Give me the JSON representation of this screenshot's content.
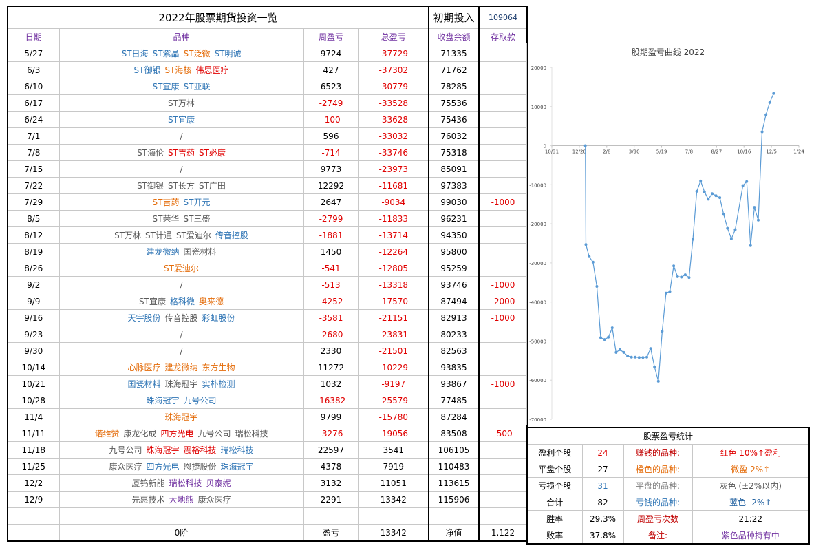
{
  "header": {
    "title": "2022年股票期货投资一览",
    "initial_label": "初期投入",
    "initial_value": 109064
  },
  "table": {
    "header_color": "#7030a0",
    "negative_color": "#e00000",
    "columns": [
      "日期",
      "品种",
      "周盈亏",
      "总盈亏",
      "收盘余额",
      "存取款"
    ],
    "rows": [
      {
        "date": "5/27",
        "stocks": [
          {
            "name": "ST日海",
            "color": "#2f75b5"
          },
          {
            "name": "ST紫晶",
            "color": "#2f75b5"
          },
          {
            "name": "ST泛微",
            "color": "#e46c0a"
          },
          {
            "name": "ST明诚",
            "color": "#2f75b5"
          }
        ],
        "weekly": 9724,
        "total": -37729,
        "balance": 71335,
        "deposit": null
      },
      {
        "date": "6/3",
        "stocks": [
          {
            "name": "ST御银",
            "color": "#2f75b5"
          },
          {
            "name": "ST海核",
            "color": "#e46c0a"
          },
          {
            "name": "伟思医疗",
            "color": "#e00000"
          }
        ],
        "weekly": 427,
        "total": -37302,
        "balance": 71762,
        "deposit": null
      },
      {
        "date": "6/10",
        "stocks": [
          {
            "name": "ST宜康",
            "color": "#2f75b5"
          },
          {
            "name": "ST亚联",
            "color": "#2f75b5"
          }
        ],
        "weekly": 6523,
        "total": -30779,
        "balance": 78285,
        "deposit": null
      },
      {
        "date": "6/17",
        "stocks": [
          {
            "name": "ST万林",
            "color": "#595959"
          }
        ],
        "weekly": -2749,
        "total": -33528,
        "balance": 75536,
        "deposit": null
      },
      {
        "date": "6/24",
        "stocks": [
          {
            "name": "ST宜康",
            "color": "#2f75b5"
          }
        ],
        "weekly": -100,
        "total": -33628,
        "balance": 75436,
        "deposit": null
      },
      {
        "date": "7/1",
        "stocks": [
          {
            "name": "/",
            "color": "#595959"
          }
        ],
        "weekly": 596,
        "total": -33032,
        "balance": 76032,
        "deposit": null
      },
      {
        "date": "7/8",
        "stocks": [
          {
            "name": "ST海伦",
            "color": "#595959"
          },
          {
            "name": "ST吉药",
            "color": "#e00000"
          },
          {
            "name": "ST必康",
            "color": "#e00000"
          }
        ],
        "weekly": -714,
        "total": -33746,
        "balance": 75318,
        "deposit": null
      },
      {
        "date": "7/15",
        "stocks": [
          {
            "name": "/",
            "color": "#595959"
          }
        ],
        "weekly": 9773,
        "total": -23973,
        "balance": 85091,
        "deposit": null
      },
      {
        "date": "7/22",
        "stocks": [
          {
            "name": "ST御银",
            "color": "#595959"
          },
          {
            "name": "ST长方",
            "color": "#595959"
          },
          {
            "name": "ST广田",
            "color": "#595959"
          }
        ],
        "weekly": 12292,
        "total": -11681,
        "balance": 97383,
        "deposit": null
      },
      {
        "date": "7/29",
        "stocks": [
          {
            "name": "ST吉药",
            "color": "#e46c0a"
          },
          {
            "name": "ST开元",
            "color": "#2f75b5"
          }
        ],
        "weekly": 2647,
        "total": -9034,
        "balance": 99030,
        "deposit": -1000
      },
      {
        "date": "8/5",
        "stocks": [
          {
            "name": "ST荣华",
            "color": "#595959"
          },
          {
            "name": "ST三盛",
            "color": "#595959"
          }
        ],
        "weekly": -2799,
        "total": -11833,
        "balance": 96231,
        "deposit": null
      },
      {
        "date": "8/12",
        "stocks": [
          {
            "name": "ST万林",
            "color": "#595959"
          },
          {
            "name": "ST计通",
            "color": "#595959"
          },
          {
            "name": "ST爱迪尔",
            "color": "#595959"
          },
          {
            "name": "传音控股",
            "color": "#2f75b5"
          }
        ],
        "weekly": -1881,
        "total": -13714,
        "balance": 94350,
        "deposit": null
      },
      {
        "date": "8/19",
        "stocks": [
          {
            "name": "建龙微纳",
            "color": "#2f75b5"
          },
          {
            "name": "国瓷材料",
            "color": "#595959"
          }
        ],
        "weekly": 1450,
        "total": -12264,
        "balance": 95800,
        "deposit": null
      },
      {
        "date": "8/26",
        "stocks": [
          {
            "name": "ST爱迪尔",
            "color": "#e46c0a"
          }
        ],
        "weekly": -541,
        "total": -12805,
        "balance": 95259,
        "deposit": null
      },
      {
        "date": "9/2",
        "stocks": [
          {
            "name": "/",
            "color": "#595959"
          }
        ],
        "weekly": -513,
        "total": -13318,
        "balance": 93746,
        "deposit": -1000
      },
      {
        "date": "9/9",
        "stocks": [
          {
            "name": "ST宜康",
            "color": "#595959"
          },
          {
            "name": "格科微",
            "color": "#2f75b5"
          },
          {
            "name": "奥来德",
            "color": "#e46c0a"
          }
        ],
        "weekly": -4252,
        "total": -17570,
        "balance": 87494,
        "deposit": -2000
      },
      {
        "date": "9/16",
        "stocks": [
          {
            "name": "天宇股份",
            "color": "#2f75b5"
          },
          {
            "name": "传音控股",
            "color": "#595959"
          },
          {
            "name": "彩虹股份",
            "color": "#2f75b5"
          }
        ],
        "weekly": -3581,
        "total": -21151,
        "balance": 82913,
        "deposit": -1000
      },
      {
        "date": "9/23",
        "stocks": [
          {
            "name": "/",
            "color": "#595959"
          }
        ],
        "weekly": -2680,
        "total": -23831,
        "balance": 80233,
        "deposit": null
      },
      {
        "date": "9/30",
        "stocks": [
          {
            "name": "/",
            "color": "#595959"
          }
        ],
        "weekly": 2330,
        "total": -21501,
        "balance": 82563,
        "deposit": null
      },
      {
        "date": "10/14",
        "stocks": [
          {
            "name": "心脉医疗",
            "color": "#e46c0a"
          },
          {
            "name": "建龙微纳",
            "color": "#e46c0a"
          },
          {
            "name": "东方生物",
            "color": "#e46c0a"
          }
        ],
        "weekly": 11272,
        "total": -10229,
        "balance": 93835,
        "deposit": null
      },
      {
        "date": "10/21",
        "stocks": [
          {
            "name": "国瓷材料",
            "color": "#2f75b5"
          },
          {
            "name": "珠海冠宇",
            "color": "#595959"
          },
          {
            "name": "实朴检测",
            "color": "#2f75b5"
          }
        ],
        "weekly": 1032,
        "total": -9197,
        "balance": 93867,
        "deposit": -1000
      },
      {
        "date": "10/28",
        "stocks": [
          {
            "name": "珠海冠宇",
            "color": "#2f75b5"
          },
          {
            "name": "九号公司",
            "color": "#2f75b5"
          }
        ],
        "weekly": -16382,
        "total": -25579,
        "balance": 77485,
        "deposit": null
      },
      {
        "date": "11/4",
        "stocks": [
          {
            "name": "珠海冠宇",
            "color": "#e46c0a"
          }
        ],
        "weekly": 9799,
        "total": -15780,
        "balance": 87284,
        "deposit": null
      },
      {
        "date": "11/11",
        "stocks": [
          {
            "name": "诺维赞",
            "color": "#e46c0a"
          },
          {
            "name": "康龙化成",
            "color": "#595959"
          },
          {
            "name": "四方光电",
            "color": "#e00000"
          },
          {
            "name": "九号公司",
            "color": "#595959"
          },
          {
            "name": "瑞松科技",
            "color": "#595959"
          }
        ],
        "weekly": -3276,
        "total": -19056,
        "balance": 83508,
        "deposit": -500
      },
      {
        "date": "11/18",
        "stocks": [
          {
            "name": "九号公司",
            "color": "#595959"
          },
          {
            "name": "珠海冠宇",
            "color": "#e00000"
          },
          {
            "name": "震裕科技",
            "color": "#e00000"
          },
          {
            "name": "瑞松科技",
            "color": "#2f75b5"
          }
        ],
        "weekly": 22597,
        "total": 3541,
        "balance": 106105,
        "deposit": null
      },
      {
        "date": "11/25",
        "stocks": [
          {
            "name": "康众医疗",
            "color": "#595959"
          },
          {
            "name": "四方光电",
            "color": "#2f75b5"
          },
          {
            "name": "恩捷股份",
            "color": "#595959"
          },
          {
            "name": "珠海冠宇",
            "color": "#2f75b5"
          }
        ],
        "weekly": 4378,
        "total": 7919,
        "balance": 110483,
        "deposit": null
      },
      {
        "date": "12/2",
        "stocks": [
          {
            "name": "厦钨新能",
            "color": "#595959"
          },
          {
            "name": "瑞松科技",
            "color": "#7030a0"
          },
          {
            "name": "贝泰妮",
            "color": "#7030a0"
          }
        ],
        "weekly": 3132,
        "total": 11051,
        "balance": 113615,
        "deposit": null
      },
      {
        "date": "12/9",
        "stocks": [
          {
            "name": "先惠技术",
            "color": "#595959"
          },
          {
            "name": "大地熊",
            "color": "#7030a0"
          },
          {
            "name": "康众医疗",
            "color": "#595959"
          }
        ],
        "weekly": 2291,
        "total": 13342,
        "balance": 115906,
        "deposit": null
      }
    ],
    "footer": {
      "name": "0阶",
      "weekly_label": "盈亏",
      "total": 13342,
      "balance_label": "净值",
      "ratio": 1.122
    }
  },
  "chart_data": {
    "type": "line",
    "title": "股期盈亏曲线 2022",
    "color": "#5b9bd5",
    "grid": false,
    "x": [
      "12/31",
      "1/1",
      "1/7",
      "1/14",
      "1/21",
      "1/28",
      "2/4",
      "2/11",
      "2/18",
      "2/25",
      "3/4",
      "3/11",
      "3/18",
      "3/25",
      "4/1",
      "4/8",
      "4/15",
      "4/22",
      "4/29",
      "5/6",
      "5/13",
      "5/20",
      "5/27",
      "6/3",
      "6/10",
      "6/17",
      "6/24",
      "7/1",
      "7/8",
      "7/15",
      "7/22",
      "7/29",
      "8/5",
      "8/12",
      "8/19",
      "8/26",
      "9/2",
      "9/9",
      "9/16",
      "9/23",
      "9/30",
      "10/14",
      "10/21",
      "10/28",
      "11/4",
      "11/11",
      "11/18",
      "11/25",
      "12/2",
      "12/9"
    ],
    "values": [
      0,
      -25300,
      -28400,
      -29800,
      -36000,
      -49100,
      -49600,
      -49000,
      -46600,
      -52900,
      -52200,
      -52900,
      -53800,
      -54100,
      -54100,
      -54200,
      -54200,
      -54100,
      -51900,
      -56600,
      -60300,
      -47500,
      -37729,
      -37302,
      -30779,
      -33528,
      -33628,
      -33032,
      -33746,
      -23973,
      -11681,
      -9034,
      -11833,
      -13714,
      -12264,
      -12805,
      -13318,
      -17570,
      -21151,
      -23831,
      -21501,
      -10229,
      -9197,
      -25579,
      -15780,
      -19056,
      3541,
      7919,
      11051,
      13342
    ],
    "xlim": [
      "10/31",
      "1/24"
    ],
    "xticks": [
      "10/31",
      "12/20",
      "2/8",
      "3/30",
      "5/19",
      "7/8",
      "8/27",
      "10/16",
      "12/5",
      "1/24"
    ],
    "ylim": [
      -70000,
      20000
    ],
    "yticks": [
      20000,
      10000,
      0,
      -10000,
      -20000,
      -30000,
      -40000,
      -50000,
      -60000,
      -70000
    ]
  },
  "stats": {
    "title": "股票盈亏统计",
    "rows": [
      [
        {
          "text": "盈利个股",
          "color": "#000000"
        },
        {
          "text": 24,
          "color": "#e00000"
        },
        {
          "text": "赚钱的品种:",
          "color": "#c00000"
        },
        {
          "text": "红色 10%↑盈利",
          "color": "#e00000"
        }
      ],
      [
        {
          "text": "平盘个股",
          "color": "#000000"
        },
        {
          "text": 27,
          "color": "#000000"
        },
        {
          "text": "橙色的品种:",
          "color": "#e46c0a"
        },
        {
          "text": "微盈 2%↑",
          "color": "#e46c0a"
        }
      ],
      [
        {
          "text": "亏损个股",
          "color": "#000000"
        },
        {
          "text": 31,
          "color": "#2f75b5"
        },
        {
          "text": "平盘的品种:",
          "color": "#808080"
        },
        {
          "text": "灰色 (±2%以内)",
          "color": "#595959"
        }
      ],
      [
        {
          "text": "合计",
          "color": "#000000"
        },
        {
          "text": 82,
          "color": "#000000"
        },
        {
          "text": "亏钱的品种:",
          "color": "#2f75b5"
        },
        {
          "text": "蓝色 -2%↑",
          "color": "#1f5f9f"
        }
      ],
      [
        {
          "text": "胜率",
          "color": "#000000"
        },
        {
          "text": "29.3%",
          "color": "#000000"
        },
        {
          "text": "周盈亏次数",
          "color": "#c00000"
        },
        {
          "text": "21:22",
          "color": "#000000"
        }
      ],
      [
        {
          "text": "败率",
          "color": "#000000"
        },
        {
          "text": "37.8%",
          "color": "#000000"
        },
        {
          "text": "备注:",
          "color": "#c00000"
        },
        {
          "text": "紫色品种持有中",
          "color": "#7030a0"
        }
      ]
    ]
  }
}
